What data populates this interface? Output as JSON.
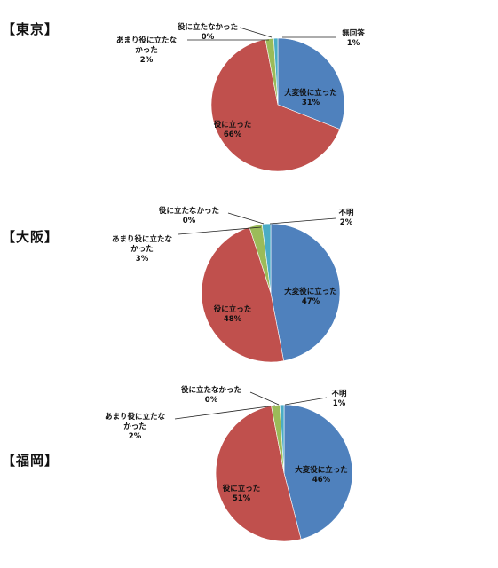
{
  "chart_data": [
    {
      "type": "pie",
      "panel_label": "【東京】",
      "slices": [
        {
          "label": "大変役に立った",
          "value": 31,
          "value_label": "31%",
          "color": "#4f81bd"
        },
        {
          "label": "役に立った",
          "value": 66,
          "value_label": "66%",
          "color": "#c0504d"
        },
        {
          "label": "あまり役に立たなかった",
          "value": 2,
          "value_label": "2%",
          "color": "#9bbb59"
        },
        {
          "label": "役に立たなかった",
          "value": 0,
          "value_label": "0%",
          "color": "#8064a2"
        },
        {
          "label": "無回答",
          "value": 1,
          "value_label": "1%",
          "color": "#4bacc6"
        }
      ]
    },
    {
      "type": "pie",
      "panel_label": "【大阪】",
      "slices": [
        {
          "label": "大変役に立った",
          "value": 47,
          "value_label": "47%",
          "color": "#4f81bd"
        },
        {
          "label": "役に立った",
          "value": 48,
          "value_label": "48%",
          "color": "#c0504d"
        },
        {
          "label": "あまり役に立たなかった",
          "value": 3,
          "value_label": "3%",
          "color": "#9bbb59"
        },
        {
          "label": "役に立たなかった",
          "value": 0,
          "value_label": "0%",
          "color": "#8064a2"
        },
        {
          "label": "不明",
          "value": 2,
          "value_label": "2%",
          "color": "#4bacc6"
        }
      ]
    },
    {
      "type": "pie",
      "panel_label": "【福岡】",
      "slices": [
        {
          "label": "大変役に立った",
          "value": 46,
          "value_label": "46%",
          "color": "#4f81bd"
        },
        {
          "label": "役に立った",
          "value": 51,
          "value_label": "51%",
          "color": "#c0504d"
        },
        {
          "label": "あまり役に立たなかった",
          "value": 2,
          "value_label": "2%",
          "color": "#9bbb59"
        },
        {
          "label": "役に立たなかった",
          "value": 0,
          "value_label": "0%",
          "color": "#8064a2"
        },
        {
          "label": "不明",
          "value": 1,
          "value_label": "1%",
          "color": "#4bacc6"
        }
      ]
    }
  ]
}
